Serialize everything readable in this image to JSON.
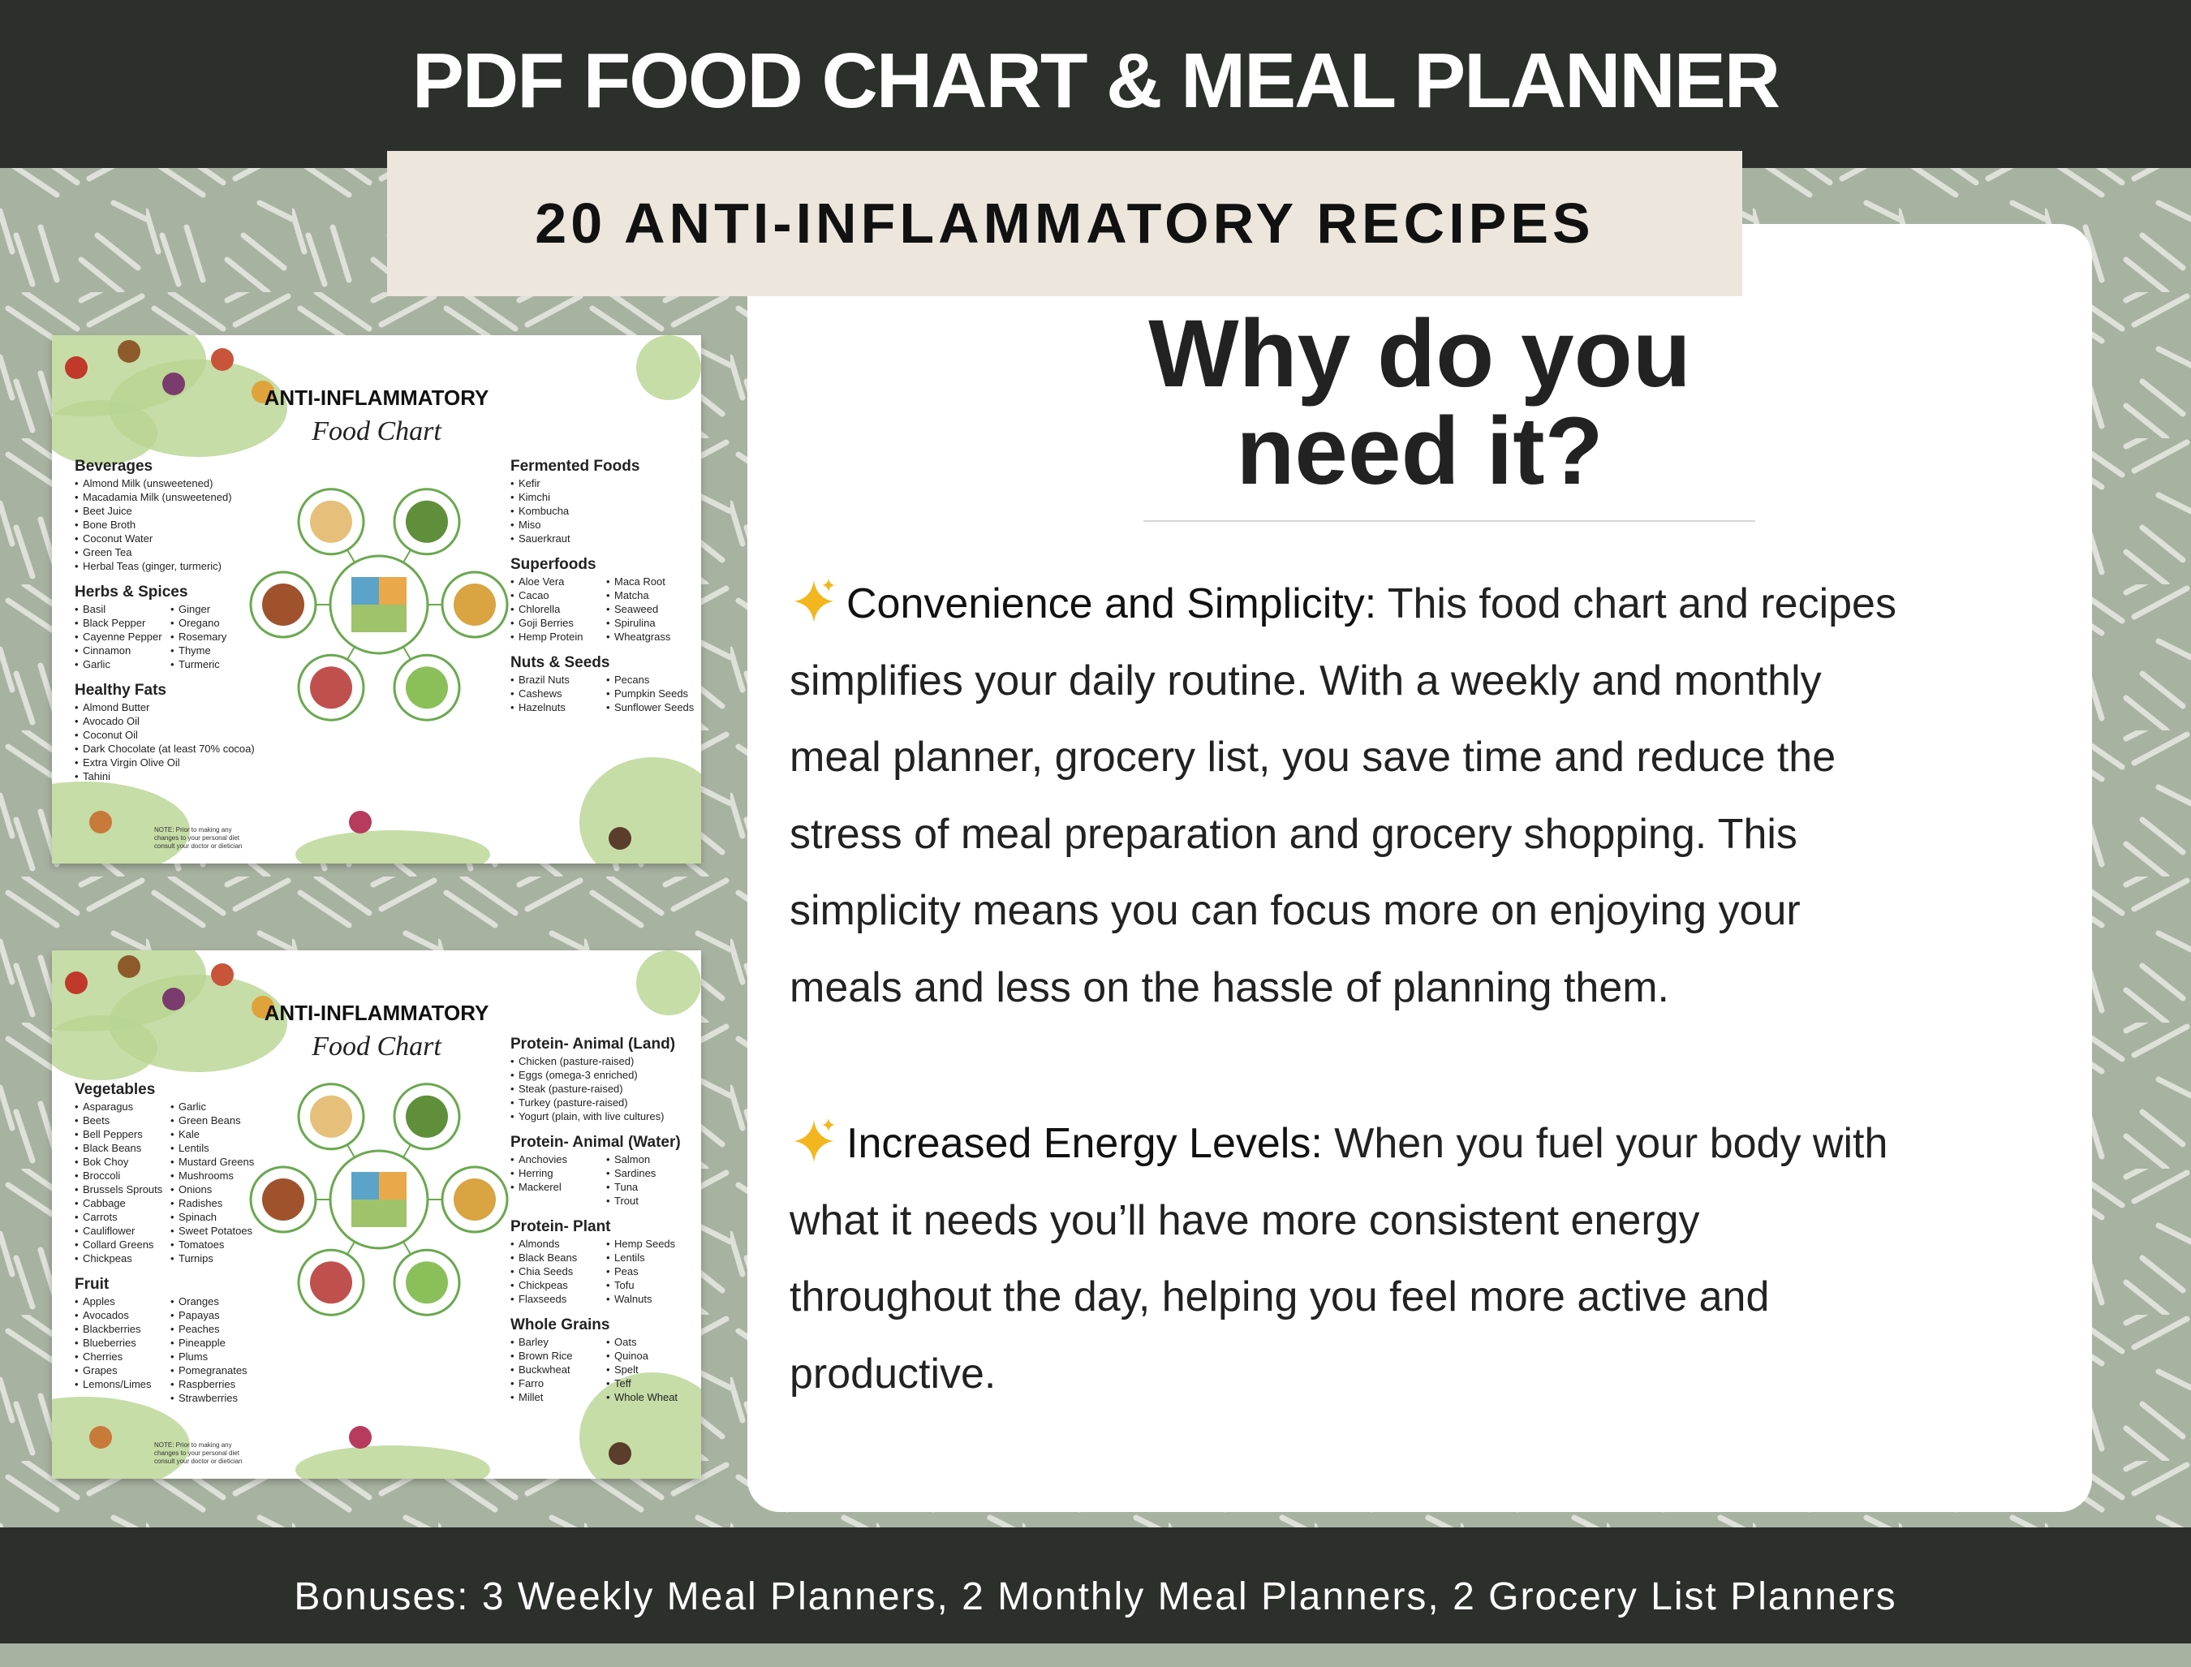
{
  "header": {
    "title": "PDF FOOD CHART & MEAL PLANNER",
    "subtitle": "20 ANTI-INFLAMMATORY RECIPES"
  },
  "card": {
    "heading_lines": [
      "Why do you",
      "need it?"
    ],
    "paragraphs": [
      {
        "heading": "Convenience and Simplicity:",
        "lines": [
          "This food chart and recipes",
          "simplifies your daily routine. With a weekly and monthly",
          "meal planner, grocery list, you save time and reduce the",
          "stress of meal preparation and grocery shopping. This",
          "simplicity means you can focus more on enjoying your",
          "meals and less on the hassle of planning them."
        ]
      },
      {
        "heading": "Increased Energy Levels:",
        "lines": [
          "When you fuel your body with",
          "what it needs you’ll have more consistent energy",
          "throughout the day, helping you feel more active and",
          "productive."
        ]
      }
    ]
  },
  "footer": {
    "text": "Bonuses: 3 Weekly Meal Planners, 2 Monthly Meal Planners, 2 Grocery List Planners"
  },
  "food_charts": [
    {
      "title": "ANTI-INFLAMMATORY",
      "subtitle": "Food Chart",
      "left": [
        {
          "heading": "Beverages",
          "columns": [
            [
              "Almond Milk (unsweetened)",
              "Macadamia Milk (unsweetened)",
              "Beet Juice",
              "Bone Broth",
              "Coconut Water",
              "Green Tea",
              "Herbal Teas (ginger, turmeric)"
            ]
          ]
        },
        {
          "heading": "Herbs & Spices",
          "columns": [
            [
              "Basil",
              "Black Pepper",
              "Cayenne Pepper",
              "Cinnamon",
              "Garlic"
            ],
            [
              "Ginger",
              "Oregano",
              "Rosemary",
              "Thyme",
              "Turmeric"
            ]
          ]
        },
        {
          "heading": "Healthy Fats",
          "columns": [
            [
              "Almond Butter",
              "Avocado Oil",
              "Coconut Oil",
              "Dark Chocolate (at least 70% cocoa)",
              "Extra Virgin Olive Oil",
              "Tahini"
            ]
          ]
        }
      ],
      "right": [
        {
          "heading": "Fermented Foods",
          "columns": [
            [
              "Kefir",
              "Kimchi",
              "Kombucha",
              "Miso",
              "Sauerkraut"
            ]
          ]
        },
        {
          "heading": "Superfoods",
          "columns": [
            [
              "Aloe Vera",
              "Cacao",
              "Chlorella",
              "Goji Berries",
              "Hemp Protein"
            ],
            [
              "Maca Root",
              "Matcha",
              "Seaweed",
              "Spirulina",
              "Wheatgrass"
            ]
          ]
        },
        {
          "heading": "Nuts & Seeds",
          "columns": [
            [
              "Brazil Nuts",
              "Cashews",
              "Hazelnuts"
            ],
            [
              "Pecans",
              "Pumpkin Seeds",
              "Sunflower Seeds"
            ]
          ]
        }
      ],
      "note": "NOTE: Prior to making any changes to your personal diet consult your doctor or dietician"
    },
    {
      "title": "ANTI-INFLAMMATORY",
      "subtitle": "Food Chart",
      "left": [
        {
          "heading": "Vegetables",
          "columns": [
            [
              "Asparagus",
              "Beets",
              "Bell Peppers",
              "Black Beans",
              "Bok Choy",
              "Broccoli",
              "Brussels Sprouts",
              "Cabbage",
              "Carrots",
              "Cauliflower",
              "Collard Greens",
              "Chickpeas"
            ],
            [
              "Garlic",
              "Green Beans",
              "Kale",
              "Lentils",
              "Mustard Greens",
              "Mushrooms",
              "Onions",
              "Radishes",
              "Spinach",
              "Sweet Potatoes",
              "Tomatoes",
              "Turnips"
            ]
          ]
        },
        {
          "heading": "Fruit",
          "columns": [
            [
              "Apples",
              "Avocados",
              "Blackberries",
              "Blueberries",
              "Cherries",
              "Grapes",
              "Lemons/Limes"
            ],
            [
              "Oranges",
              "Papayas",
              "Peaches",
              "Pineapple",
              "Plums",
              "Pomegranates",
              "Raspberries",
              "Strawberries"
            ]
          ]
        }
      ],
      "right": [
        {
          "heading": "Protein- Animal (Land)",
          "columns": [
            [
              "Chicken (pasture-raised)",
              "Eggs (omega-3 enriched)",
              "Steak (pasture-raised)",
              "Turkey (pasture-raised)",
              "Yogurt (plain, with live cultures)"
            ]
          ]
        },
        {
          "heading": "Protein- Animal (Water)",
          "columns": [
            [
              "Anchovies",
              "Herring",
              "Mackerel"
            ],
            [
              "Salmon",
              "Sardines",
              "Tuna",
              "Trout"
            ]
          ]
        },
        {
          "heading": "Protein- Plant",
          "columns": [
            [
              "Almonds",
              "Black Beans",
              "Chia Seeds",
              "Chickpeas",
              "Flaxseeds"
            ],
            [
              "Hemp Seeds",
              "Lentils",
              "Peas",
              "Tofu",
              "Walnuts"
            ]
          ]
        },
        {
          "heading": "Whole Grains",
          "columns": [
            [
              "Barley",
              "Brown Rice",
              "Buckwheat",
              "Farro",
              "Millet"
            ],
            [
              "Oats",
              "Quinoa",
              "Spelt",
              "Teff",
              "Whole Wheat"
            ]
          ]
        }
      ],
      "note": "NOTE: Prior to making any changes to your personal diet consult your doctor or dietician"
    }
  ]
}
